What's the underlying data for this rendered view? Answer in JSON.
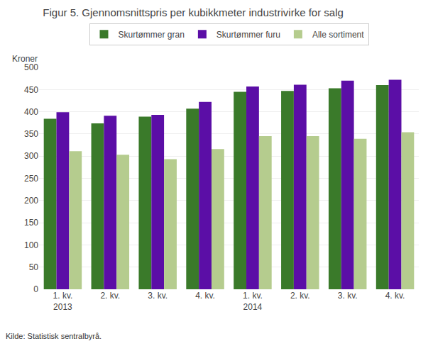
{
  "chart_data": {
    "type": "bar",
    "title": "Figur 5. Gjennomsnittspris per kubikkmeter industrivirke for salg",
    "ylabel": "Kroner",
    "source": "Kilde: Statistisk sentralbyrå.",
    "categories": [
      "1. kv.\n2013",
      "2. kv.",
      "3. kv.",
      "4. kv.",
      "1. kv.\n2014",
      "2. kv.",
      "3. kv.",
      "4. kv."
    ],
    "series": [
      {
        "name": "Skurtømmer gran",
        "color": "#3a7a2a",
        "values": [
          384,
          374,
          389,
          407,
          445,
          447,
          453,
          460
        ]
      },
      {
        "name": "Skurtømmer furu",
        "color": "#5b0ea6",
        "values": [
          399,
          391,
          393,
          422,
          457,
          461,
          470,
          472
        ]
      },
      {
        "name": "Alle sortiment",
        "color": "#b5cc8e",
        "values": [
          311,
          303,
          293,
          316,
          345,
          345,
          339,
          354
        ]
      }
    ],
    "ylim": [
      0,
      500
    ],
    "yticks": [
      0,
      50,
      100,
      150,
      200,
      250,
      300,
      350,
      400,
      450,
      500
    ],
    "grid": true,
    "legend": "top"
  }
}
